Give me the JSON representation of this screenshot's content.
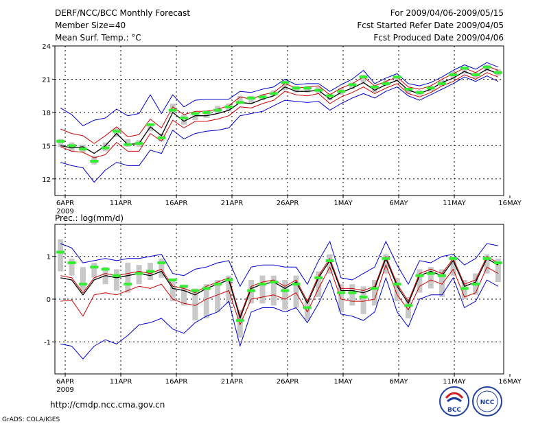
{
  "header": {
    "title": "DERF/NCC/BCC Monthly Forecast",
    "member_size": "Member Size=40",
    "variable_top": "Mean Surf. Temp.: °C",
    "period": "For 2009/04/06-2009/05/15",
    "refer_date": "Fcst Started Refer Date 2009/04/05",
    "produced_date": "Fcst Produced Date 2009/04/06"
  },
  "footer": {
    "url": "http://cmdp.ncc.cma.gov.cn",
    "credit": "GrADS: COLA/IGES",
    "logo_bcc": "BCC",
    "logo_ncc": "NCC"
  },
  "colors": {
    "envelope": "#0000cc",
    "spread": "#cc0000",
    "mean": "#000000",
    "box": "#c8c8c8",
    "median": "#33ee33",
    "grid": "#000000"
  },
  "chart_data": [
    {
      "type": "line",
      "panel": "temperature",
      "title": "Mean Surf. Temp.: °C",
      "x_tick_labels": [
        "6APR",
        "11APR",
        "16APR",
        "21APR",
        "26APR",
        "1MAY",
        "6MAY",
        "11MAY",
        "16MAY"
      ],
      "x_year_label": "2009",
      "xlim": [
        0,
        40
      ],
      "ylim": [
        10.5,
        24
      ],
      "y_ticks": [
        12,
        15,
        18,
        21,
        24
      ],
      "mean": [
        15.0,
        14.8,
        14.9,
        14.3,
        15.0,
        16.1,
        15.1,
        15.2,
        16.7,
        15.9,
        18.0,
        17.2,
        17.7,
        17.7,
        17.9,
        18.2,
        18.9,
        18.8,
        19.2,
        19.5,
        20.3,
        19.9,
        19.9,
        20.0,
        19.2,
        19.8,
        20.2,
        20.7,
        20.0,
        20.5,
        20.9,
        20.0,
        19.7,
        20.1,
        20.7,
        21.1,
        21.7,
        21.3,
        21.9,
        21.5
      ],
      "upper_spread": [
        16.5,
        16.1,
        15.9,
        15.2,
        15.9,
        16.7,
        15.8,
        16.0,
        17.4,
        16.6,
        18.5,
        17.8,
        18.1,
        18.1,
        18.3,
        18.6,
        19.4,
        19.2,
        19.6,
        19.8,
        20.6,
        20.2,
        20.3,
        20.4,
        19.6,
        20.2,
        20.6,
        21.2,
        20.4,
        20.8,
        21.2,
        20.3,
        20.1,
        20.4,
        21.0,
        21.5,
        22.0,
        21.6,
        22.2,
        21.8
      ],
      "lower_spread": [
        14.9,
        14.5,
        14.4,
        13.9,
        14.2,
        15.3,
        14.5,
        14.5,
        16.1,
        15.4,
        17.3,
        16.6,
        17.2,
        17.2,
        17.4,
        17.7,
        18.5,
        18.4,
        18.8,
        19.1,
        19.9,
        19.6,
        19.5,
        19.7,
        18.8,
        19.4,
        19.8,
        20.3,
        19.7,
        20.2,
        20.6,
        19.7,
        19.4,
        19.8,
        20.4,
        20.8,
        21.4,
        21.0,
        21.6,
        21.2
      ],
      "max": [
        18.4,
        17.8,
        16.8,
        17.3,
        17.5,
        18.3,
        17.7,
        17.9,
        19.6,
        17.9,
        19.6,
        18.5,
        19.1,
        19.2,
        19.2,
        19.2,
        19.9,
        19.8,
        20.1,
        20.3,
        21.0,
        20.5,
        20.6,
        20.6,
        19.9,
        20.5,
        21.0,
        21.8,
        20.6,
        21.1,
        21.5,
        20.6,
        20.4,
        20.7,
        21.2,
        21.8,
        22.3,
        21.9,
        22.5,
        22.1
      ],
      "min": [
        13.5,
        13.2,
        13.0,
        11.7,
        12.8,
        13.5,
        13.2,
        13.2,
        14.6,
        14.3,
        16.4,
        15.6,
        16.1,
        16.3,
        16.4,
        16.6,
        17.7,
        17.9,
        18.1,
        18.6,
        19.1,
        19.0,
        18.9,
        19.0,
        18.2,
        18.8,
        19.3,
        19.7,
        19.3,
        19.9,
        20.3,
        19.5,
        19.1,
        19.6,
        20.1,
        20.6,
        21.2,
        20.8,
        21.3,
        20.8
      ],
      "box_high": [
        15.6,
        15.3,
        15.1,
        14.1,
        15.3,
        16.6,
        15.6,
        15.5,
        17.0,
        16.1,
        18.8,
        17.8,
        18.0,
        18.2,
        18.6,
        18.8,
        19.5,
        19.5,
        19.6,
        20.0,
        20.9,
        20.4,
        20.4,
        20.3,
        19.7,
        20.2,
        20.7,
        21.4,
        20.4,
        20.9,
        21.3,
        20.2,
        20.0,
        20.4,
        20.9,
        21.7,
        22.1,
        21.6,
        22.3,
        21.9
      ],
      "box_low": [
        14.9,
        14.5,
        14.4,
        13.3,
        14.5,
        15.8,
        14.9,
        14.9,
        16.3,
        15.4,
        17.9,
        16.9,
        17.3,
        17.5,
        17.9,
        18.1,
        18.8,
        18.8,
        19.1,
        19.5,
        20.0,
        19.8,
        19.8,
        19.7,
        19.1,
        19.6,
        20.1,
        20.7,
        19.8,
        20.4,
        20.8,
        19.7,
        19.5,
        19.9,
        20.4,
        21.0,
        21.5,
        21.1,
        21.7,
        21.3
      ],
      "median": [
        15.4,
        15.0,
        14.7,
        13.6,
        14.8,
        16.3,
        15.1,
        15.2,
        16.9,
        15.7,
        18.2,
        17.5,
        17.9,
        18.0,
        18.2,
        18.5,
        18.9,
        19.3,
        19.4,
        19.7,
        20.7,
        20.2,
        20.2,
        20.0,
        19.5,
        19.9,
        20.5,
        21.2,
        20.3,
        20.6,
        21.2,
        20.1,
        19.8,
        20.2,
        20.6,
        21.4,
        22.0,
        21.4,
        22.1,
        21.6
      ]
    },
    {
      "type": "line",
      "panel": "precipitation",
      "title": "Prec.: log(mm/d)",
      "x_tick_labels": [
        "6APR",
        "11APR",
        "16APR",
        "21APR",
        "26APR",
        "1MAY",
        "6MAY",
        "11MAY",
        "16MAY"
      ],
      "x_year_label": "2009",
      "xlim": [
        0,
        40
      ],
      "ylim": [
        -1.75,
        1.75
      ],
      "y_ticks": [
        -1,
        0,
        1
      ],
      "mean": [
        0.5,
        0.45,
        0.1,
        0.45,
        0.55,
        0.5,
        0.55,
        0.6,
        0.55,
        0.65,
        0.25,
        0.2,
        0.1,
        0.25,
        0.35,
        0.45,
        -0.45,
        0.25,
        0.35,
        0.4,
        0.25,
        0.4,
        -0.1,
        0.5,
        0.9,
        0.2,
        0.2,
        0.15,
        0.25,
        0.95,
        0.3,
        -0.1,
        0.55,
        0.65,
        0.55,
        0.9,
        0.3,
        0.4,
        0.95,
        0.8
      ],
      "upper_spread": [
        0.55,
        0.5,
        0.15,
        0.5,
        0.6,
        0.55,
        0.6,
        0.65,
        0.6,
        0.7,
        0.3,
        0.25,
        0.15,
        0.3,
        0.4,
        0.5,
        -0.4,
        0.3,
        0.4,
        0.45,
        0.3,
        0.45,
        -0.05,
        0.55,
        0.95,
        0.25,
        0.25,
        0.2,
        0.3,
        1.0,
        0.35,
        -0.05,
        0.6,
        0.7,
        0.6,
        0.95,
        0.35,
        0.45,
        1.0,
        0.85
      ],
      "lower_spread": [
        -0.05,
        -0.02,
        -0.4,
        0.1,
        0.15,
        0.1,
        0.2,
        0.3,
        0.25,
        0.35,
        0.0,
        -0.1,
        -0.15,
        0.0,
        0.1,
        0.2,
        -0.6,
        0.0,
        0.05,
        0.1,
        0.0,
        0.15,
        -0.3,
        0.25,
        0.75,
        0.0,
        -0.05,
        -0.05,
        0.0,
        0.8,
        0.1,
        -0.25,
        0.3,
        0.45,
        0.35,
        0.7,
        0.05,
        0.15,
        0.75,
        0.6
      ],
      "max": [
        1.3,
        1.2,
        0.85,
        0.9,
        0.95,
        0.9,
        0.95,
        0.95,
        1.0,
        1.05,
        0.6,
        0.55,
        0.7,
        0.75,
        0.85,
        0.9,
        0.3,
        0.75,
        0.8,
        0.8,
        0.75,
        0.75,
        0.35,
        0.9,
        1.35,
        0.5,
        0.45,
        0.6,
        0.75,
        1.35,
        0.8,
        0.35,
        0.9,
        0.85,
        1.0,
        1.05,
        0.8,
        0.95,
        1.3,
        1.25
      ],
      "min": [
        -1.05,
        -1.1,
        -1.4,
        -1.1,
        -0.95,
        -1.05,
        -0.85,
        -0.6,
        -0.55,
        -0.45,
        -0.7,
        -0.8,
        -0.55,
        -0.4,
        -0.3,
        -0.05,
        -1.1,
        -0.3,
        -0.2,
        -0.2,
        -0.3,
        -0.2,
        -0.55,
        -0.1,
        0.45,
        -0.35,
        -0.4,
        -0.5,
        -0.3,
        0.5,
        -0.3,
        -0.65,
        0.0,
        0.1,
        0.1,
        0.5,
        -0.2,
        -0.05,
        0.45,
        0.3
      ],
      "box_high": [
        1.4,
        0.95,
        0.75,
        0.85,
        0.75,
        0.7,
        0.85,
        0.8,
        0.85,
        0.95,
        0.45,
        0.3,
        0.25,
        0.35,
        0.45,
        0.55,
        -0.25,
        0.45,
        0.55,
        0.55,
        0.45,
        0.55,
        0.0,
        0.65,
        1.05,
        0.35,
        0.35,
        0.3,
        0.45,
        1.05,
        0.5,
        0.05,
        0.7,
        0.75,
        0.7,
        1.0,
        0.45,
        0.6,
        1.05,
        0.95
      ],
      "box_low": [
        0.65,
        0.55,
        0.2,
        0.5,
        0.35,
        0.2,
        0.15,
        0.35,
        0.45,
        0.5,
        -0.05,
        -0.15,
        -0.5,
        -0.45,
        -0.3,
        -0.1,
        -0.9,
        -0.1,
        -0.1,
        -0.15,
        -0.25,
        -0.2,
        -0.5,
        0.05,
        0.6,
        -0.3,
        -0.15,
        -0.35,
        -0.15,
        0.6,
        -0.05,
        -0.45,
        0.15,
        0.25,
        0.05,
        0.55,
        0.0,
        0.1,
        0.6,
        0.4
      ],
      "median": [
        1.1,
        0.85,
        0.35,
        0.75,
        0.7,
        0.55,
        0.35,
        0.6,
        0.65,
        0.85,
        0.45,
        0.3,
        0.2,
        0.25,
        0.35,
        0.45,
        -0.5,
        0.2,
        0.35,
        0.4,
        0.2,
        0.35,
        -0.2,
        0.5,
        0.9,
        0.15,
        0.15,
        0.05,
        0.25,
        0.95,
        0.35,
        -0.15,
        0.55,
        0.6,
        0.55,
        0.95,
        0.25,
        0.35,
        0.95,
        0.85
      ]
    }
  ]
}
